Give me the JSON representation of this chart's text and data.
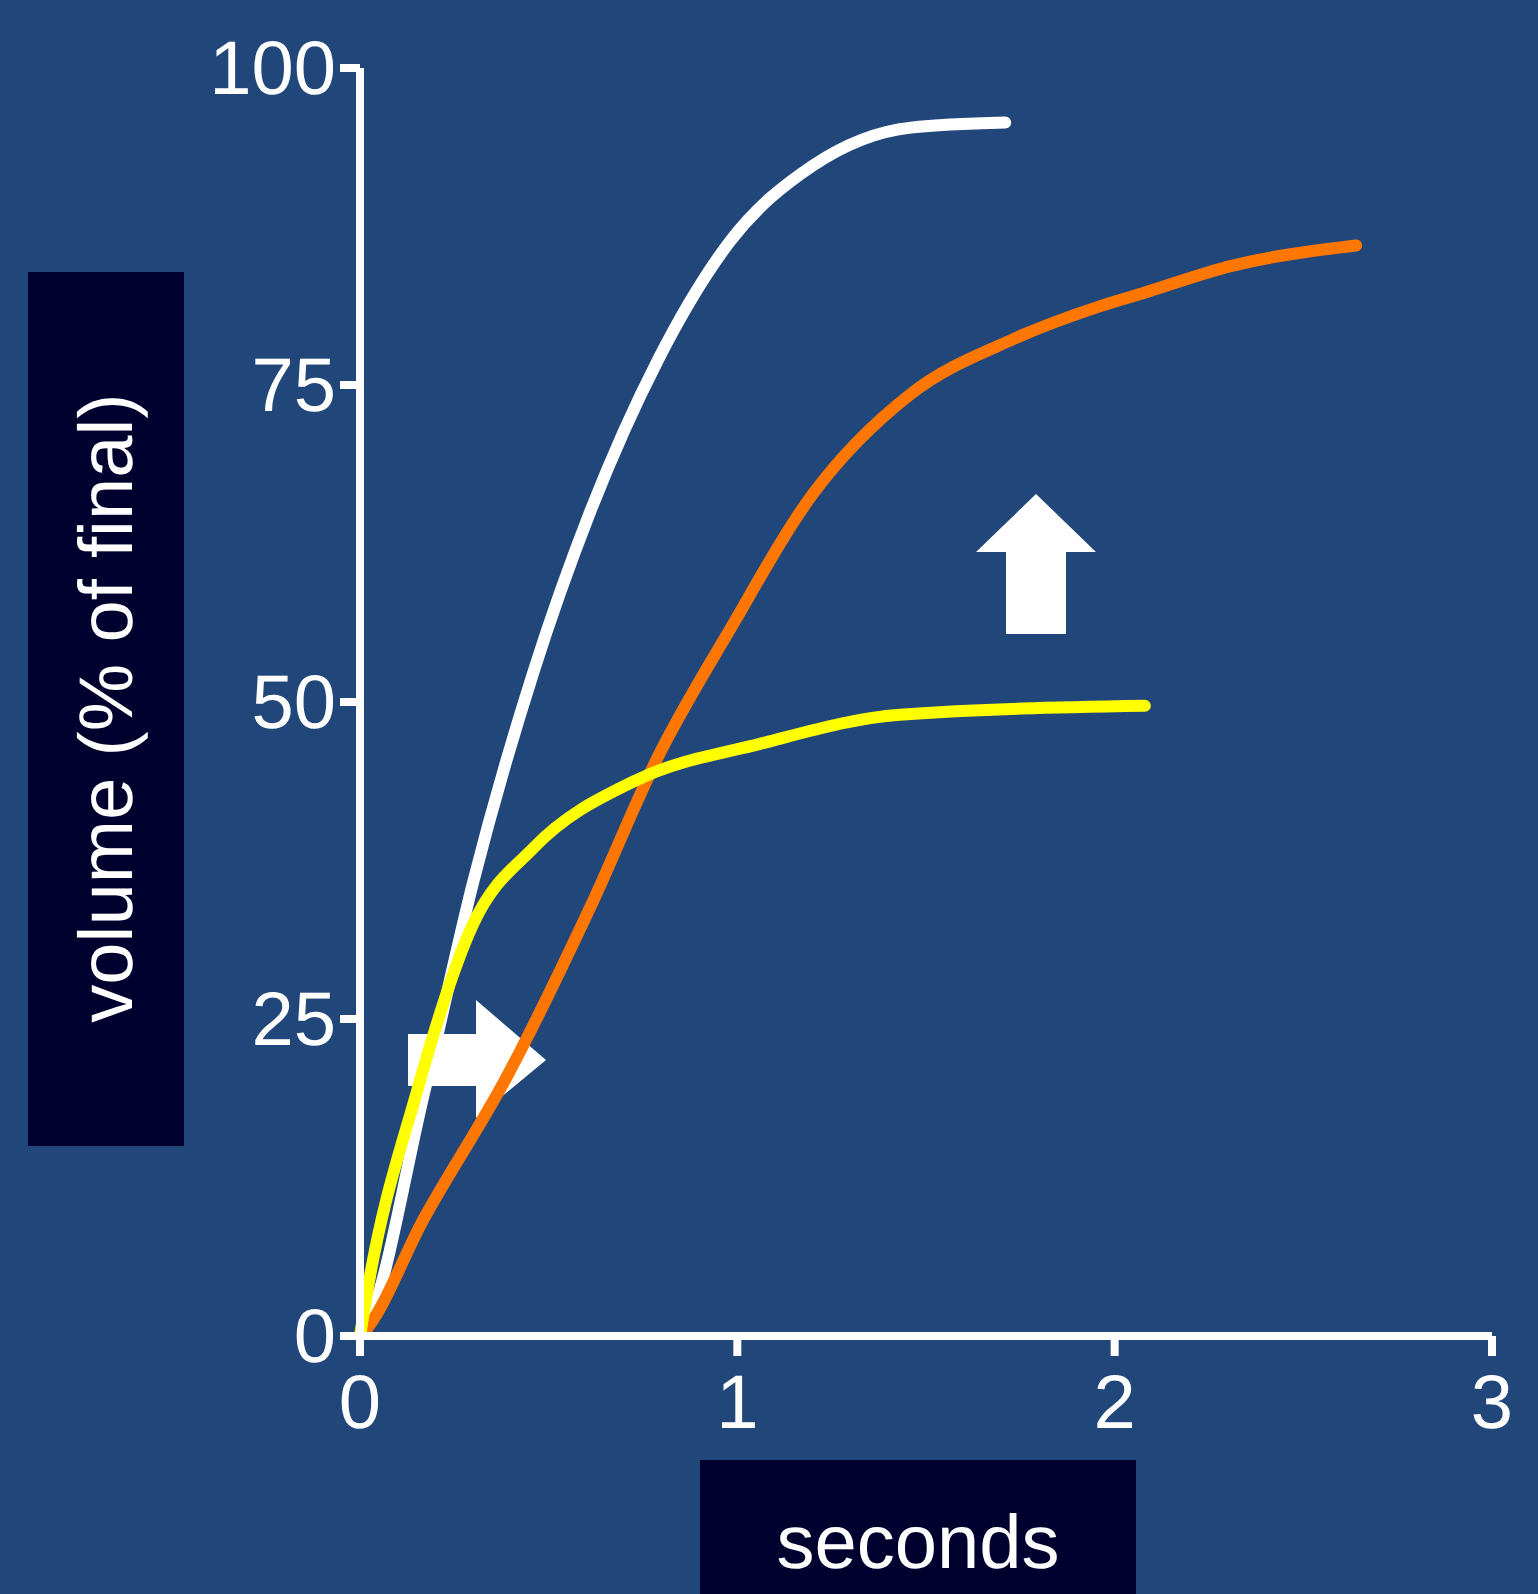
{
  "chart_data": {
    "type": "line",
    "xlabel": "seconds",
    "ylabel": "volume (% of final)",
    "xlim": [
      0,
      3
    ],
    "xticks": [
      0,
      1,
      2,
      3
    ],
    "ylim": [
      0,
      100
    ],
    "yticks": [
      0,
      25,
      50,
      75,
      100
    ],
    "grid": false,
    "marker": "none",
    "line_style": "solid",
    "series": [
      {
        "color": "#ffffff",
        "x": [
          0,
          0.014,
          0.17,
          0.3,
          0.46,
          0.61,
          0.79,
          0.98,
          1.2,
          1.46,
          1.71
        ],
        "values": [
          0,
          0.6,
          19.2,
          35.8,
          52.4,
          65,
          77,
          86.3,
          92.3,
          95.3,
          95.7
        ]
      },
      {
        "color": "#ff7700",
        "x": [
          0,
          0.01,
          0.17,
          0.39,
          0.61,
          0.79,
          0.98,
          1.2,
          1.46,
          1.73,
          1.96,
          2.07,
          2.31,
          2.64
        ],
        "values": [
          0,
          0.3,
          9.3,
          20.5,
          33.8,
          45.7,
          55.7,
          66.4,
          74.3,
          78.6,
          81.2,
          82.2,
          84.4,
          86
        ]
      },
      {
        "color": "#ffff00",
        "x": [
          0,
          0.014,
          0.15,
          0.3,
          0.46,
          0.73,
          1.06,
          1.43,
          2.08
        ],
        "values": [
          0,
          2.6,
          19.2,
          32.5,
          38.5,
          43.8,
          46.7,
          49,
          49.7
        ]
      }
    ]
  }
}
